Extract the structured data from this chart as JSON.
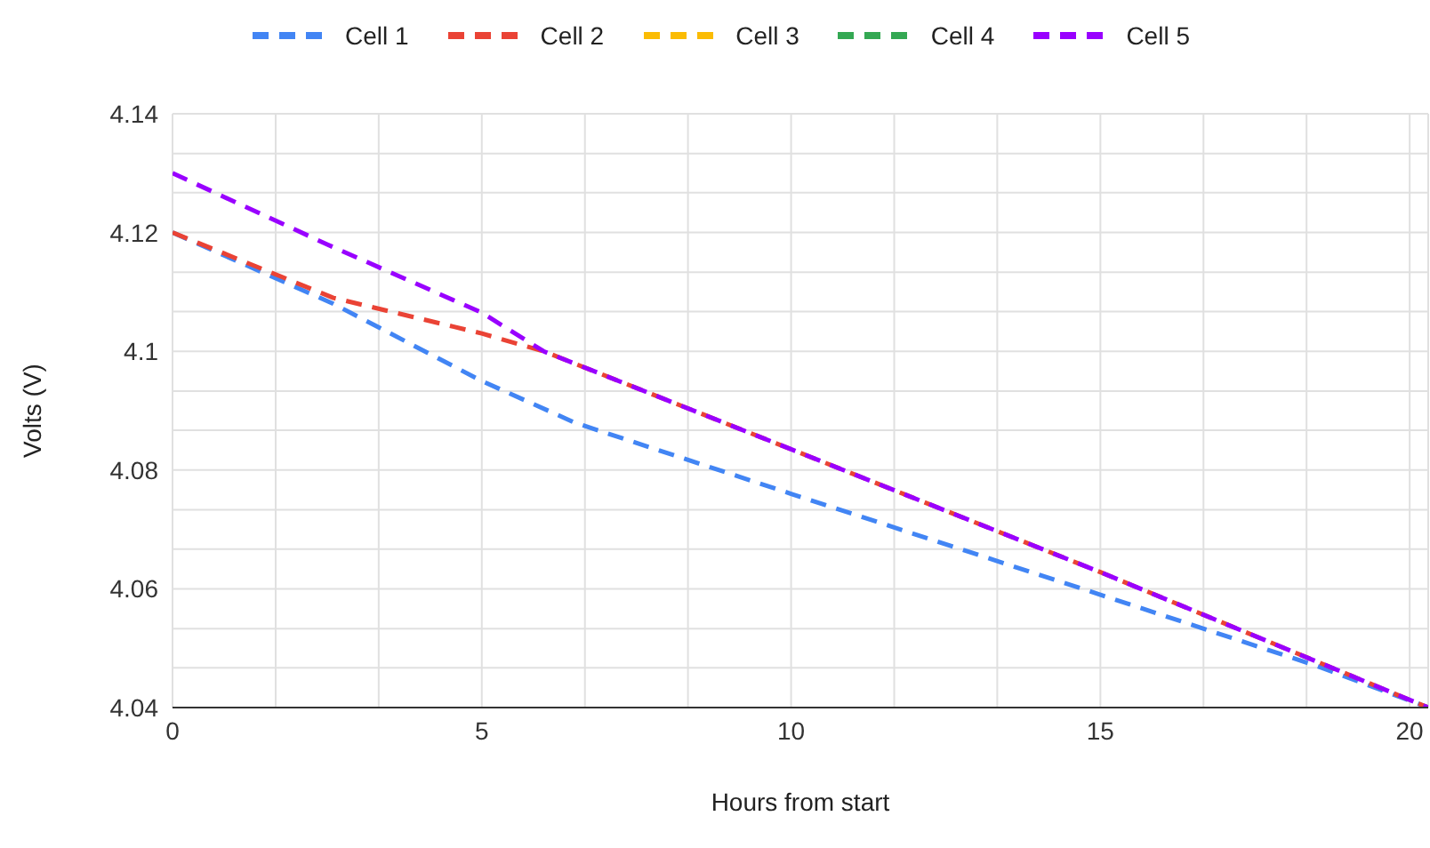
{
  "chart_data": {
    "type": "line",
    "xlabel": "Hours from start",
    "ylabel": "Volts (V)",
    "xlim": [
      0,
      20.3
    ],
    "ylim": [
      4.04,
      4.14
    ],
    "xticks": [
      0,
      {
        "value": 1.667,
        "label": null
      },
      {
        "value": 3.333,
        "label": null
      },
      5,
      {
        "value": 6.667,
        "label": null
      },
      {
        "value": 8.333,
        "label": null
      },
      10,
      {
        "value": 11.667,
        "label": null
      },
      {
        "value": 13.333,
        "label": null
      },
      15,
      {
        "value": 16.667,
        "label": null
      },
      {
        "value": 18.333,
        "label": null
      },
      20
    ],
    "yticks": [
      4.04,
      {
        "value": 4.0467,
        "label": null
      },
      {
        "value": 4.0533,
        "label": null
      },
      4.06,
      {
        "value": 4.0667,
        "label": null
      },
      {
        "value": 4.0733,
        "label": null
      },
      4.08,
      {
        "value": 4.0867,
        "label": null
      },
      {
        "value": 4.0933,
        "label": null
      },
      4.1,
      {
        "value": 4.1067,
        "label": null
      },
      {
        "value": 4.1133,
        "label": null
      },
      4.12,
      {
        "value": 4.1267,
        "label": null
      },
      {
        "value": 4.1333,
        "label": null
      },
      4.14
    ],
    "grid": true,
    "legend": "top",
    "line_style": "dashed",
    "marker": "none",
    "series": [
      {
        "name": "Cell 1",
        "color": "#4285f4",
        "x": [
          0,
          2.6,
          5,
          6.5,
          10,
          15,
          18.5,
          20.3
        ],
        "values": [
          4.12,
          4.108,
          4.095,
          4.088,
          4.076,
          4.059,
          4.047,
          4.04
        ]
      },
      {
        "name": "Cell 2",
        "color": "#ea4335",
        "x": [
          0,
          2.6,
          5,
          6,
          10,
          15,
          20.3
        ],
        "values": [
          4.12,
          4.109,
          4.103,
          4.1,
          4.0835,
          4.0628,
          4.04
        ]
      },
      {
        "name": "Cell 3",
        "color": "#fbbc04"
      },
      {
        "name": "Cell 4",
        "color": "#34a853"
      },
      {
        "name": "Cell 5",
        "color": "#9900ff",
        "x": [
          0,
          2.5,
          5,
          6,
          10,
          15,
          20.3
        ],
        "values": [
          4.13,
          4.118,
          4.1065,
          4.1,
          4.0835,
          4.0628,
          4.04
        ]
      }
    ]
  }
}
